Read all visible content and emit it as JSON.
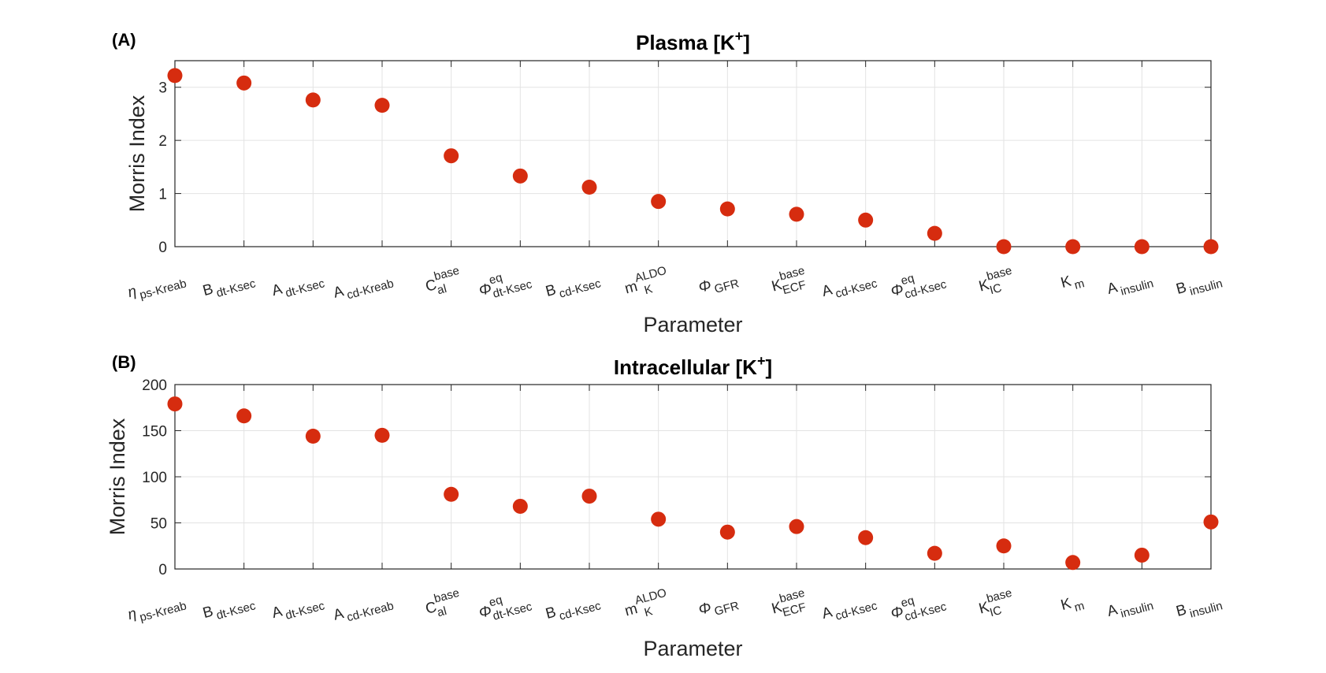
{
  "chart_data": [
    {
      "type": "scatter",
      "panel": "(A)",
      "title": "Plasma [K",
      "title_sup": "+",
      "title_end": "]",
      "xlabel": "Parameter",
      "ylabel": "Morris Index",
      "ylim": [
        0,
        3.5
      ],
      "yticks": [
        "0",
        "1",
        "2",
        "3"
      ],
      "grid": true,
      "marker_color": "#d62c0f",
      "categories": [
        {
          "main": "η",
          "sub": "ps-Kreab",
          "sup": ""
        },
        {
          "main": "B",
          "sub": "dt-Ksec",
          "sup": ""
        },
        {
          "main": "A",
          "sub": "dt-Ksec",
          "sup": ""
        },
        {
          "main": "A",
          "sub": "cd-Kreab",
          "sup": ""
        },
        {
          "main": "C",
          "sub": "al",
          "sup": "base"
        },
        {
          "main": "Φ",
          "sub": "dt-Ksec",
          "sup": "eq"
        },
        {
          "main": "B",
          "sub": "cd-Ksec",
          "sup": ""
        },
        {
          "main": "m",
          "sub": "K",
          "sup": "ALDO"
        },
        {
          "main": "Φ",
          "sub": "GFR",
          "sup": ""
        },
        {
          "main": "K",
          "sub": "ECF",
          "sup": "base"
        },
        {
          "main": "A",
          "sub": "cd-Ksec",
          "sup": ""
        },
        {
          "main": "Φ",
          "sub": "cd-Ksec",
          "sup": "eq"
        },
        {
          "main": "K",
          "sub": "IC",
          "sup": "base"
        },
        {
          "main": "K",
          "sub": "m",
          "sup": ""
        },
        {
          "main": "A",
          "sub": "insulin",
          "sup": ""
        },
        {
          "main": "B",
          "sub": "insulin",
          "sup": ""
        }
      ],
      "values": [
        3.22,
        3.08,
        2.76,
        2.66,
        1.71,
        1.33,
        1.12,
        0.85,
        0.71,
        0.61,
        0.5,
        0.25,
        0.0,
        0.0,
        0.0,
        0.0
      ]
    },
    {
      "type": "scatter",
      "panel": "(B)",
      "title": "Intracellular [K",
      "title_sup": "+",
      "title_end": "]",
      "xlabel": "Parameter",
      "ylabel": "Morris Index",
      "ylim": [
        0,
        200
      ],
      "yticks": [
        "0",
        "50",
        "100",
        "150",
        "200"
      ],
      "grid": true,
      "marker_color": "#d62c0f",
      "categories": [
        {
          "main": "η",
          "sub": "ps-Kreab",
          "sup": ""
        },
        {
          "main": "B",
          "sub": "dt-Ksec",
          "sup": ""
        },
        {
          "main": "A",
          "sub": "dt-Ksec",
          "sup": ""
        },
        {
          "main": "A",
          "sub": "cd-Kreab",
          "sup": ""
        },
        {
          "main": "C",
          "sub": "al",
          "sup": "base"
        },
        {
          "main": "Φ",
          "sub": "dt-Ksec",
          "sup": "eq"
        },
        {
          "main": "B",
          "sub": "cd-Ksec",
          "sup": ""
        },
        {
          "main": "m",
          "sub": "K",
          "sup": "ALDO"
        },
        {
          "main": "Φ",
          "sub": "GFR",
          "sup": ""
        },
        {
          "main": "K",
          "sub": "ECF",
          "sup": "base"
        },
        {
          "main": "A",
          "sub": "cd-Ksec",
          "sup": ""
        },
        {
          "main": "Φ",
          "sub": "cd-Ksec",
          "sup": "eq"
        },
        {
          "main": "K",
          "sub": "IC",
          "sup": "base"
        },
        {
          "main": "K",
          "sub": "m",
          "sup": ""
        },
        {
          "main": "A",
          "sub": "insulin",
          "sup": ""
        },
        {
          "main": "B",
          "sub": "insulin",
          "sup": ""
        }
      ],
      "values": [
        179,
        166,
        144,
        145,
        81,
        68,
        79,
        54,
        40,
        46,
        34,
        17,
        25,
        7,
        15,
        51
      ]
    }
  ]
}
